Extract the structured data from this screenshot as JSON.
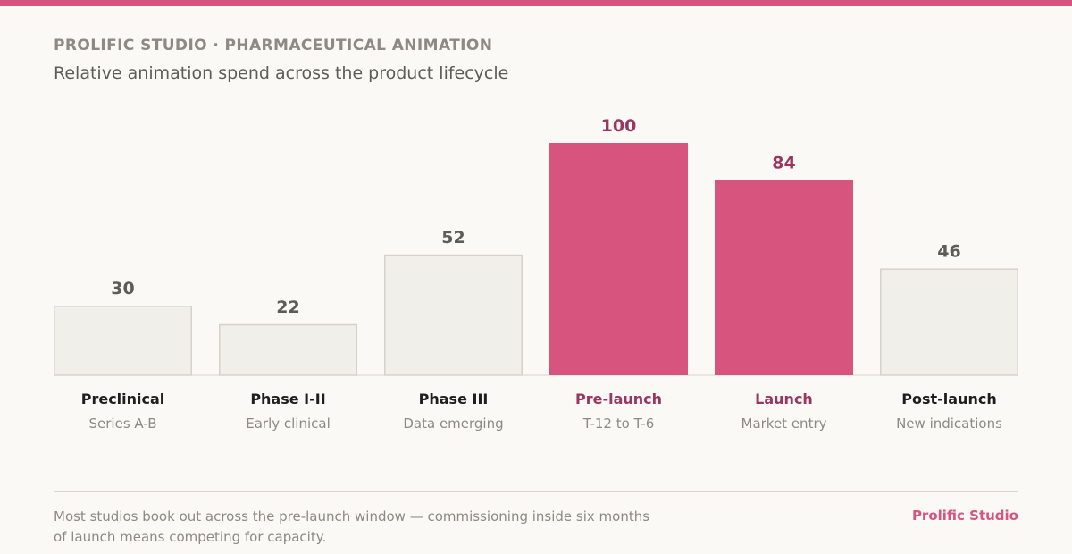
{
  "header": {
    "kicker": "PROLIFIC STUDIO · PHARMACEUTICAL ANIMATION",
    "subtitle": "Relative animation spend across the product lifecycle"
  },
  "footer": {
    "note": "Most studios book out across the pre-launch window — commissioning inside six months of launch means competing for capacity.",
    "brand": "Prolific Studio"
  },
  "colors": {
    "accent": "#d6547e",
    "accent_text": "#9b3560",
    "neutral_fill": "#f0efea",
    "neutral_stroke": "#d5d3c8",
    "neutral_value": "#5e5c57",
    "label_dark": "#1e1e1e",
    "sublabel": "#8c8a83"
  },
  "chart_data": {
    "type": "bar",
    "title": "",
    "xlabel": "",
    "ylabel": "",
    "ylim": [
      0,
      100
    ],
    "grid": false,
    "categories": [
      "Preclinical",
      "Phase I-II",
      "Phase III",
      "Pre-launch",
      "Launch",
      "Post-launch"
    ],
    "sublabels": [
      "Series A-B",
      "Early clinical",
      "Data emerging",
      "T-12 to T-6",
      "Market entry",
      "New indications"
    ],
    "values": [
      30,
      22,
      52,
      100,
      84,
      46
    ],
    "highlighted": [
      false,
      false,
      false,
      true,
      true,
      false
    ]
  }
}
